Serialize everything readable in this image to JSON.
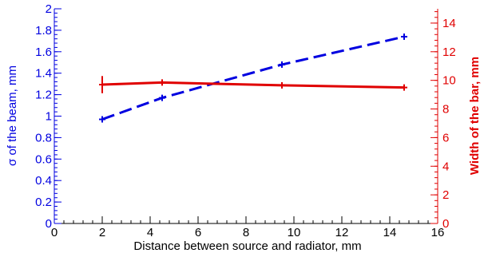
{
  "chart_data": {
    "type": "line",
    "xlabel": "Distance between source and radiator, mm",
    "ylabel": "σ of the beam, mm",
    "y2label": "Width of the bar, mm",
    "xlim": [
      0,
      16
    ],
    "ylim": [
      0,
      2
    ],
    "y2lim": [
      0,
      15
    ],
    "x_ticks": [
      "0",
      "2",
      "4",
      "6",
      "8",
      "10",
      "12",
      "14",
      "16"
    ],
    "y_ticks": [
      "0",
      "0.2",
      "0.4",
      "0.6",
      "0.8",
      "1",
      "1.2",
      "1.4",
      "1.6",
      "1.8",
      "2"
    ],
    "y2_ticks": [
      "0",
      "2",
      "4",
      "6",
      "8",
      "10",
      "12",
      "14"
    ],
    "grid": false,
    "series": [
      {
        "axis": "left",
        "color": "#0000e0",
        "style": "dashed",
        "x": [
          2,
          4.5,
          9.5,
          14.6
        ],
        "y": [
          0.97,
          1.17,
          1.48,
          1.74
        ],
        "yerr": [
          0.01,
          0.02,
          0.02,
          0.01
        ]
      },
      {
        "axis": "right",
        "color": "#e00000",
        "style": "solid",
        "x": [
          2,
          4.5,
          9.5,
          14.6
        ],
        "y": [
          9.7,
          9.85,
          9.65,
          9.5
        ],
        "yerr": [
          0.6,
          0.05,
          0.05,
          0.05
        ]
      }
    ],
    "colors": {
      "left_axis": "#0000e0",
      "right_axis": "#e00000",
      "bottom_axis": "#000000"
    }
  }
}
